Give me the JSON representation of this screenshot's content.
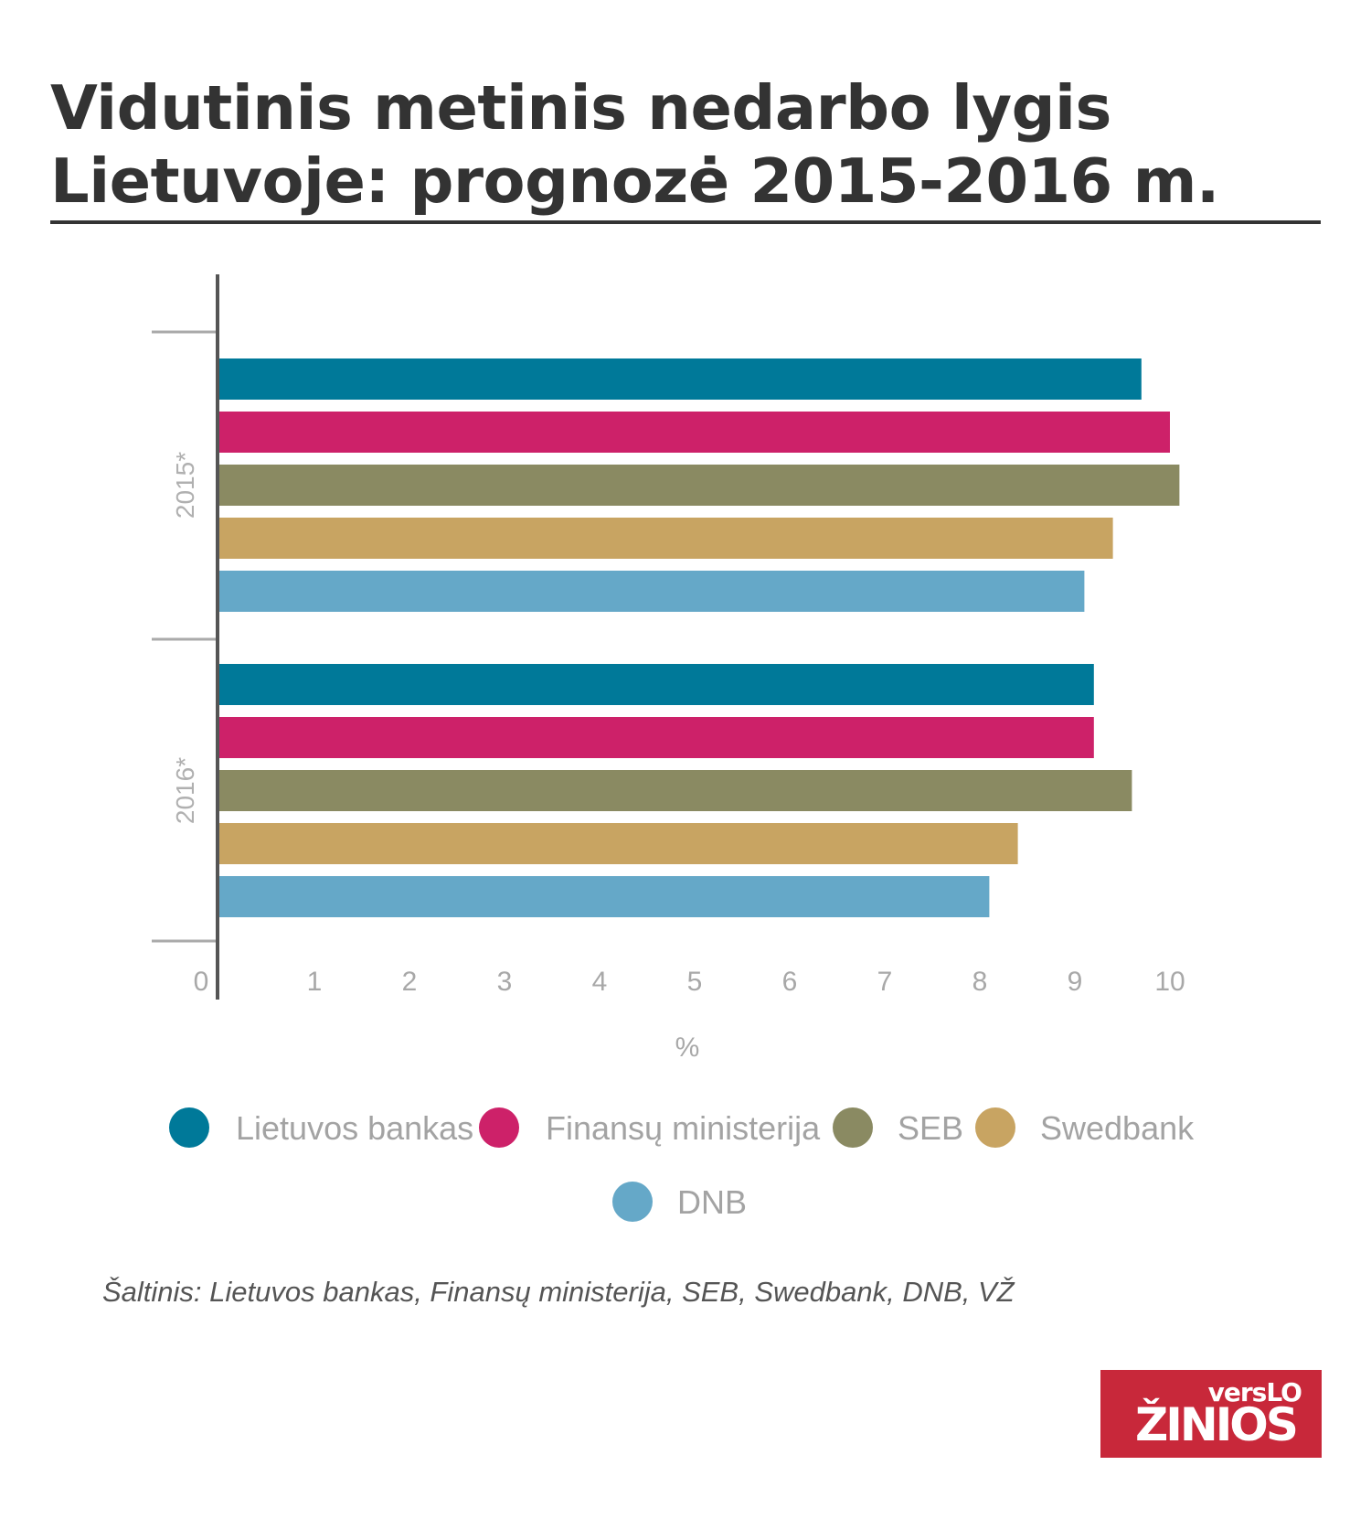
{
  "title": {
    "line1": "Vidutinis metinis nedarbo lygis",
    "line2": "Lietuvoje: prognozė 2015-2016 m."
  },
  "source": "Šaltinis: Lietuvos bankas, Finansų ministerija, SEB, Swedbank, DNB, VŽ",
  "logo": {
    "top": "versLO",
    "bottom": "ŽINIOS"
  },
  "chart_data": {
    "type": "bar",
    "orientation": "horizontal",
    "categories": [
      "2015*",
      "2016*"
    ],
    "xlabel": "%",
    "xlim": [
      0,
      10
    ],
    "xticks": [
      "0",
      "1",
      "2",
      "3",
      "4",
      "5",
      "6",
      "7",
      "8",
      "9",
      "10"
    ],
    "grid": false,
    "legend_position": "bottom",
    "series": [
      {
        "name": "Lietuvos bankas",
        "color": "#007999",
        "values": [
          9.7,
          9.2
        ]
      },
      {
        "name": "Finansų ministerija",
        "color": "#cd2169",
        "values": [
          10.0,
          9.2
        ]
      },
      {
        "name": "SEB",
        "color": "#8a8a62",
        "values": [
          10.1,
          9.6
        ]
      },
      {
        "name": "Swedbank",
        "color": "#c8a462",
        "values": [
          9.4,
          8.4
        ]
      },
      {
        "name": "DNB",
        "color": "#65a8c8",
        "values": [
          9.1,
          8.1
        ]
      }
    ]
  }
}
